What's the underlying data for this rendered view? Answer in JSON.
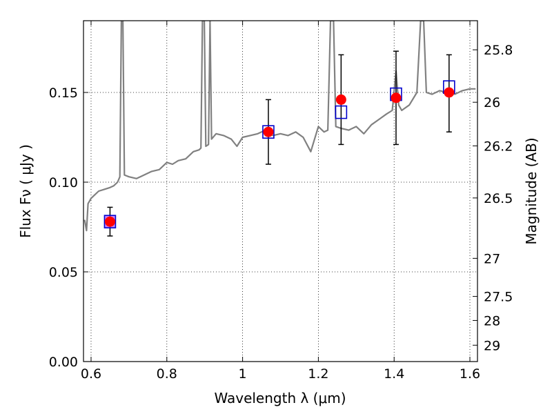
{
  "chart_data": {
    "type": "scatter",
    "xlabel": "Wavelength  λ (μm)",
    "ylabel": "Flux  Fν  ( μJy )",
    "y2label": "Magnitude (AB)",
    "xlim": [
      0.58,
      1.62
    ],
    "ylim": [
      0.0,
      0.19
    ],
    "grid": true,
    "x_ticks": [
      {
        "value": 0.6,
        "label": "0.6"
      },
      {
        "value": 0.8,
        "label": "0.8"
      },
      {
        "value": 1.0,
        "label": "1"
      },
      {
        "value": 1.2,
        "label": "1.2"
      },
      {
        "value": 1.4,
        "label": "1.4"
      },
      {
        "value": 1.6,
        "label": "1.6"
      }
    ],
    "y_ticks": [
      {
        "value": 0.0,
        "label": "0.00"
      },
      {
        "value": 0.05,
        "label": "0.05"
      },
      {
        "value": 0.1,
        "label": "0.10"
      },
      {
        "value": 0.15,
        "label": "0.15"
      }
    ],
    "mag_ticks": [
      {
        "mag": 25.8,
        "label": "25.8"
      },
      {
        "mag": 26.0,
        "label": "26"
      },
      {
        "mag": 26.2,
        "label": "26.2"
      },
      {
        "mag": 26.5,
        "label": "26.5"
      },
      {
        "mag": 27.0,
        "label": "27"
      },
      {
        "mag": 27.5,
        "label": "27.5"
      },
      {
        "mag": 28.0,
        "label": "28"
      },
      {
        "mag": 29.0,
        "label": "29"
      }
    ],
    "observed": {
      "marker": "circle",
      "color": "#ff0000",
      "points": [
        {
          "x": 0.65,
          "y": 0.078,
          "yerr_low": 0.07,
          "yerr_high": 0.086
        },
        {
          "x": 1.068,
          "y": 0.128,
          "yerr_low": 0.11,
          "yerr_high": 0.146
        },
        {
          "x": 1.26,
          "y": 0.146,
          "yerr_low": 0.121,
          "yerr_high": 0.171
        },
        {
          "x": 1.405,
          "y": 0.147,
          "yerr_low": 0.121,
          "yerr_high": 0.173
        },
        {
          "x": 1.545,
          "y": 0.15,
          "yerr_low": 0.128,
          "yerr_high": 0.171
        }
      ]
    },
    "model_bands": {
      "marker": "square",
      "color": "#0000cc",
      "points": [
        {
          "x": 0.65,
          "y": 0.078
        },
        {
          "x": 1.068,
          "y": 0.128
        },
        {
          "x": 1.26,
          "y": 0.139
        },
        {
          "x": 1.405,
          "y": 0.149
        },
        {
          "x": 1.545,
          "y": 0.153
        }
      ]
    },
    "spectrum": {
      "color": "#808080",
      "points": [
        [
          0.583,
          0.079
        ],
        [
          0.588,
          0.073
        ],
        [
          0.592,
          0.088
        ],
        [
          0.6,
          0.091
        ],
        [
          0.61,
          0.093
        ],
        [
          0.62,
          0.095
        ],
        [
          0.635,
          0.096
        ],
        [
          0.65,
          0.097
        ],
        [
          0.66,
          0.098
        ],
        [
          0.67,
          0.1
        ],
        [
          0.676,
          0.103
        ],
        [
          0.68,
          0.19
        ],
        [
          0.684,
          0.19
        ],
        [
          0.688,
          0.104
        ],
        [
          0.7,
          0.103
        ],
        [
          0.72,
          0.102
        ],
        [
          0.74,
          0.104
        ],
        [
          0.76,
          0.106
        ],
        [
          0.78,
          0.107
        ],
        [
          0.8,
          0.111
        ],
        [
          0.815,
          0.11
        ],
        [
          0.83,
          0.112
        ],
        [
          0.85,
          0.113
        ],
        [
          0.87,
          0.117
        ],
        [
          0.885,
          0.118
        ],
        [
          0.89,
          0.119
        ],
        [
          0.894,
          0.19
        ],
        [
          0.899,
          0.19
        ],
        [
          0.903,
          0.12
        ],
        [
          0.91,
          0.121
        ],
        [
          0.914,
          0.19
        ],
        [
          0.918,
          0.124
        ],
        [
          0.93,
          0.127
        ],
        [
          0.95,
          0.126
        ],
        [
          0.97,
          0.124
        ],
        [
          0.985,
          0.12
        ],
        [
          1.0,
          0.125
        ],
        [
          1.02,
          0.126
        ],
        [
          1.04,
          0.127
        ],
        [
          1.06,
          0.129
        ],
        [
          1.08,
          0.126
        ],
        [
          1.1,
          0.127
        ],
        [
          1.12,
          0.126
        ],
        [
          1.14,
          0.128
        ],
        [
          1.16,
          0.125
        ],
        [
          1.18,
          0.117
        ],
        [
          1.19,
          0.124
        ],
        [
          1.2,
          0.131
        ],
        [
          1.215,
          0.128
        ],
        [
          1.225,
          0.129
        ],
        [
          1.232,
          0.19
        ],
        [
          1.24,
          0.19
        ],
        [
          1.246,
          0.131
        ],
        [
          1.26,
          0.13
        ],
        [
          1.28,
          0.129
        ],
        [
          1.3,
          0.131
        ],
        [
          1.32,
          0.127
        ],
        [
          1.34,
          0.132
        ],
        [
          1.36,
          0.135
        ],
        [
          1.38,
          0.138
        ],
        [
          1.395,
          0.14
        ],
        [
          1.405,
          0.162
        ],
        [
          1.412,
          0.143
        ],
        [
          1.42,
          0.14
        ],
        [
          1.44,
          0.143
        ],
        [
          1.46,
          0.15
        ],
        [
          1.47,
          0.19
        ],
        [
          1.478,
          0.19
        ],
        [
          1.485,
          0.15
        ],
        [
          1.5,
          0.149
        ],
        [
          1.52,
          0.151
        ],
        [
          1.54,
          0.15
        ],
        [
          1.56,
          0.149
        ],
        [
          1.58,
          0.151
        ],
        [
          1.6,
          0.152
        ],
        [
          1.615,
          0.152
        ]
      ]
    }
  }
}
